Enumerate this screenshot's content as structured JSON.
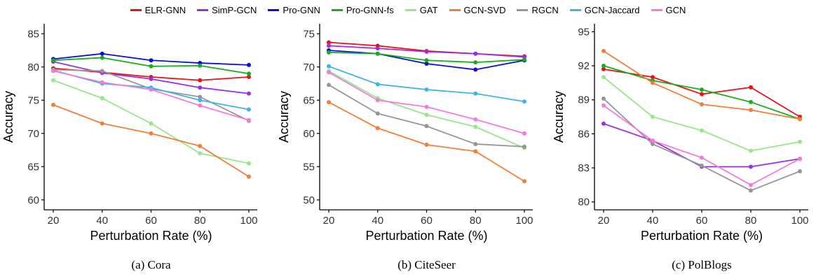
{
  "legend": [
    {
      "name": "ELR-GNN",
      "color": "#e6131a"
    },
    {
      "name": "SimP-GCN",
      "color": "#9b30e0"
    },
    {
      "name": "Pro-GNN",
      "color": "#0d0ddb"
    },
    {
      "name": "Pro-GNN-fs",
      "color": "#1aad1a"
    },
    {
      "name": "GAT",
      "color": "#99e68a"
    },
    {
      "name": "GCN-SVD",
      "color": "#f07f3a"
    },
    {
      "name": "RGCN",
      "color": "#969696"
    },
    {
      "name": "GCN-Jaccard",
      "color": "#3fb4ea"
    },
    {
      "name": "GCN",
      "color": "#f57ad9"
    }
  ],
  "chart_data": [
    {
      "type": "line",
      "caption": "(a) Cora",
      "xlabel": "Perturbation Rate (%)",
      "ylabel": "Accuracy",
      "x": [
        20,
        40,
        60,
        80,
        100
      ],
      "xlim": [
        20,
        100
      ],
      "ylim": [
        58.5,
        86.5
      ],
      "yticks": [
        60,
        65,
        70,
        75,
        80,
        85
      ],
      "series": [
        {
          "name": "ELR-GNN",
          "values": [
            79.8,
            79.2,
            78.5,
            78.0,
            78.5
          ]
        },
        {
          "name": "SimP-GCN",
          "values": [
            80.8,
            79.1,
            78.2,
            76.9,
            76.0
          ]
        },
        {
          "name": "Pro-GNN",
          "values": [
            81.2,
            82.0,
            81.0,
            80.6,
            80.3
          ]
        },
        {
          "name": "Pro-GNN-fs",
          "values": [
            81.0,
            81.4,
            80.1,
            80.2,
            79.0
          ]
        },
        {
          "name": "GAT",
          "values": [
            78.0,
            75.3,
            71.5,
            67.0,
            65.5
          ]
        },
        {
          "name": "GCN-SVD",
          "values": [
            74.3,
            71.5,
            70.0,
            68.1,
            63.5
          ]
        },
        {
          "name": "RGCN",
          "values": [
            79.6,
            79.4,
            76.7,
            75.5,
            71.9
          ]
        },
        {
          "name": "GCN-Jaccard",
          "values": [
            79.5,
            77.5,
            76.9,
            75.0,
            73.6
          ]
        },
        {
          "name": "GCN",
          "values": [
            79.4,
            77.7,
            76.6,
            74.2,
            72.0
          ]
        }
      ]
    },
    {
      "type": "line",
      "caption": "(b) CiteSeer",
      "xlabel": "Perturbation Rate (%)",
      "ylabel": "Accuracy",
      "x": [
        20,
        40,
        60,
        80,
        100
      ],
      "xlim": [
        20,
        100
      ],
      "ylim": [
        48.5,
        76.5
      ],
      "yticks": [
        50,
        55,
        60,
        65,
        70,
        75
      ],
      "series": [
        {
          "name": "ELR-GNN",
          "values": [
            73.7,
            73.2,
            72.4,
            72.0,
            71.6
          ]
        },
        {
          "name": "SimP-GCN",
          "values": [
            73.2,
            72.8,
            72.3,
            72.0,
            71.5
          ]
        },
        {
          "name": "Pro-GNN",
          "values": [
            72.5,
            72.0,
            70.5,
            69.6,
            71.0
          ]
        },
        {
          "name": "Pro-GNN-fs",
          "values": [
            72.2,
            72.0,
            71.0,
            70.7,
            71.1
          ]
        },
        {
          "name": "GAT",
          "values": [
            69.4,
            65.3,
            62.8,
            61.0,
            57.8
          ]
        },
        {
          "name": "GCN-SVD",
          "values": [
            64.7,
            60.8,
            58.3,
            57.3,
            52.8
          ]
        },
        {
          "name": "RGCN",
          "values": [
            67.3,
            63.0,
            61.1,
            58.4,
            58.0
          ]
        },
        {
          "name": "GCN-Jaccard",
          "values": [
            70.1,
            67.4,
            66.6,
            66.0,
            64.8
          ]
        },
        {
          "name": "GCN",
          "values": [
            69.2,
            65.0,
            64.0,
            62.1,
            60.0
          ]
        }
      ]
    },
    {
      "type": "line",
      "caption": "(c) PolBlogs",
      "xlabel": "Perturbation Rate (%)",
      "ylabel": "Accuracy",
      "x": [
        20,
        40,
        60,
        80,
        100
      ],
      "xlim": [
        20,
        100
      ],
      "ylim": [
        79.3,
        95.7
      ],
      "yticks": [
        80,
        83,
        86,
        89,
        92,
        95
      ],
      "series": [
        {
          "name": "ELR-GNN",
          "values": [
            91.7,
            91.0,
            89.5,
            90.1,
            87.5
          ]
        },
        {
          "name": "SimP-GCN",
          "values": [
            86.9,
            85.4,
            83.1,
            83.1,
            83.8
          ]
        },
        {
          "name": "Pro-GNN",
          "values": [
            null,
            null,
            null,
            null,
            null
          ]
        },
        {
          "name": "Pro-GNN-fs",
          "values": [
            92.0,
            90.7,
            89.9,
            88.8,
            87.3
          ]
        },
        {
          "name": "GAT",
          "values": [
            91.0,
            87.5,
            86.3,
            84.5,
            85.3
          ]
        },
        {
          "name": "GCN-SVD",
          "values": [
            93.3,
            90.5,
            88.6,
            88.1,
            87.3
          ]
        },
        {
          "name": "RGCN",
          "values": [
            89.1,
            85.1,
            83.2,
            81.0,
            82.7
          ]
        },
        {
          "name": "GCN-Jaccard",
          "values": [
            null,
            null,
            null,
            null,
            null
          ]
        },
        {
          "name": "GCN",
          "values": [
            88.5,
            85.4,
            83.9,
            81.5,
            83.8
          ]
        }
      ]
    }
  ]
}
